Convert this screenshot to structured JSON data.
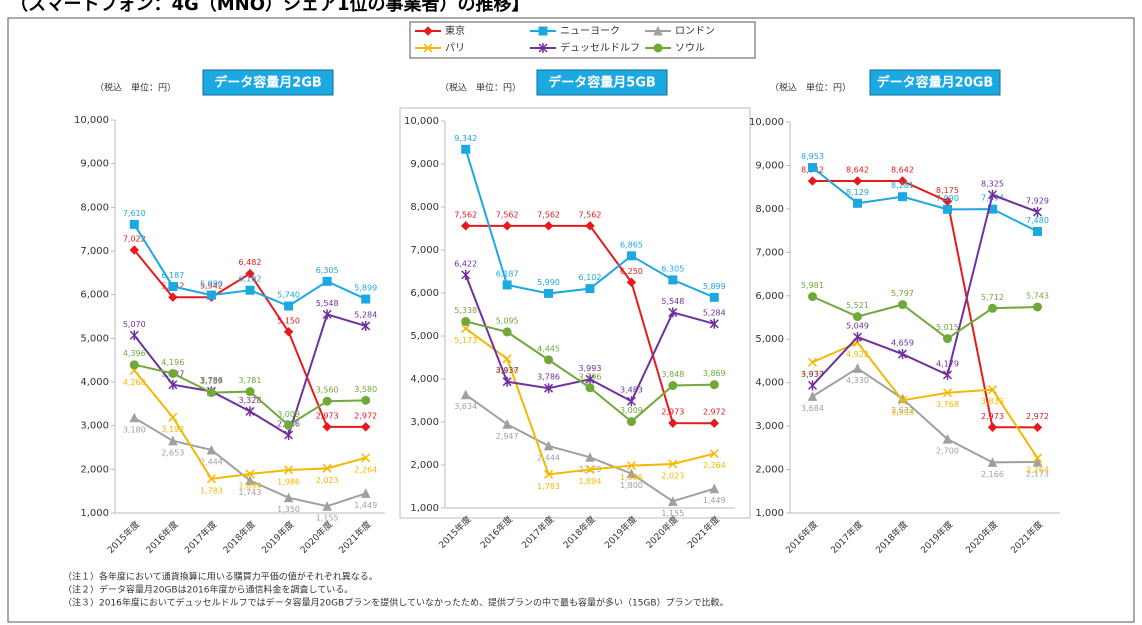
{
  "page_title": "（スマートフォン：4G（MNO）シェア1位の事業者）の推移】",
  "notes": [
    "（注１）各年度において通貨換算に用いる購買力平価の値がそれぞれ異なる。",
    "（注２）データ容量月20GBは2016年度から通信料金を調査している。",
    "（注３）2016年度においてデュッセルドルフではデータ容量月20GBプランを提供していなかったため、提供プランの中で最も容量が多い（15GB）プランで比較。"
  ],
  "chart_data": [
    {
      "type": "line",
      "title": "データ容量月2GB",
      "unit_label": "（税込　単位：円）",
      "categories": [
        "2015年度",
        "2016年度",
        "2017年度",
        "2018年度",
        "2019年度",
        "2020年度",
        "2021年度"
      ],
      "ylim": [
        1000,
        10000
      ],
      "grid": false,
      "yticks": [
        {
          "value": 1000,
          "label": "1,000"
        },
        {
          "value": 2000,
          "label": "2,000"
        },
        {
          "value": 3000,
          "label": "3,000"
        },
        {
          "value": 4000,
          "label": "4,000"
        },
        {
          "value": 5000,
          "label": "5,000"
        },
        {
          "value": 6000,
          "label": "6,000"
        },
        {
          "value": 7000,
          "label": "7,000"
        },
        {
          "value": 8000,
          "label": "8,000"
        },
        {
          "value": 9000,
          "label": "9,000"
        },
        {
          "value": 10000,
          "label": "10,000"
        }
      ],
      "series": [
        {
          "name": "東京",
          "color": "#e8191c",
          "marker": "diamond",
          "values": [
            7022,
            5942,
            5942,
            6482,
            5150,
            2973,
            2972
          ],
          "value_labels": [
            "7,022",
            "5,942",
            "5,942",
            "6,482",
            "5,150",
            "2,973",
            "2,972"
          ]
        },
        {
          "name": "ニューヨーク",
          "color": "#1ca8e0",
          "marker": "square",
          "values": [
            7610,
            6187,
            5990,
            6102,
            5740,
            6305,
            5899
          ],
          "value_labels": [
            "7,610",
            "6,187",
            "5,990",
            "6,102",
            "5,740",
            "6,305",
            "5,899"
          ]
        },
        {
          "name": "ロンドン",
          "color": "#a0a0a0",
          "marker": "triangle",
          "values": [
            3180,
            2653,
            2444,
            1743,
            1350,
            1155,
            1449
          ],
          "value_labels": [
            "3,180",
            "2,653",
            "2,444",
            "1,743",
            "1,350",
            "1,155",
            "1,449"
          ]
        },
        {
          "name": "パリ",
          "color": "#f5b800",
          "marker": "x",
          "values": [
            4268,
            3192,
            1783,
            1894,
            1986,
            2023,
            2264
          ],
          "value_labels": [
            "4,268",
            "3,192",
            "1,783",
            "1,894",
            "1,986",
            "2,023",
            "2,264"
          ]
        },
        {
          "name": "デュッセルドルフ",
          "color": "#7030a0",
          "marker": "star",
          "values": [
            5070,
            3937,
            3786,
            3328,
            2786,
            5548,
            5284
          ],
          "value_labels": [
            "5,070",
            "3,937",
            "3,786",
            "3,328",
            "2,786",
            "5,548",
            "5,284"
          ]
        },
        {
          "name": "ソウル",
          "color": "#70a83a",
          "marker": "circle",
          "values": [
            4396,
            4196,
            3757,
            3781,
            3009,
            3560,
            3580
          ],
          "value_labels": [
            "4,396",
            "4,196",
            "3,757",
            "3,781",
            "3,009",
            "3,560",
            "3,580"
          ]
        }
      ]
    },
    {
      "type": "line",
      "title": "データ容量月5GB",
      "unit_label": "（税込　単位：円）",
      "categories": [
        "2015年度",
        "2016年度",
        "2017年度",
        "2018年度",
        "2019年度",
        "2020年度",
        "2021年度"
      ],
      "ylim": [
        1000,
        10000
      ],
      "grid": false,
      "yticks": [
        {
          "value": 1000,
          "label": "1,000"
        },
        {
          "value": 2000,
          "label": "2,000"
        },
        {
          "value": 3000,
          "label": "3,000"
        },
        {
          "value": 4000,
          "label": "4,000"
        },
        {
          "value": 5000,
          "label": "5,000"
        },
        {
          "value": 6000,
          "label": "6,000"
        },
        {
          "value": 7000,
          "label": "7,000"
        },
        {
          "value": 8000,
          "label": "8,000"
        },
        {
          "value": 9000,
          "label": "9,000"
        },
        {
          "value": 10000,
          "label": "10,000"
        }
      ],
      "series": [
        {
          "name": "東京",
          "color": "#e8191c",
          "marker": "diamond",
          "values": [
            7562,
            7562,
            7562,
            7562,
            6250,
            2973,
            2972
          ],
          "value_labels": [
            "7,562",
            "7,562",
            "7,562",
            "7,562",
            "6,250",
            "2,973",
            "2,972"
          ]
        },
        {
          "name": "ニューヨーク",
          "color": "#1ca8e0",
          "marker": "square",
          "values": [
            9342,
            6187,
            5990,
            6102,
            6865,
            6305,
            5899
          ],
          "value_labels": [
            "9,342",
            "6,187",
            "5,990",
            "6,102",
            "6,865",
            "6,305",
            "5,899"
          ]
        },
        {
          "name": "ロンドン",
          "color": "#a0a0a0",
          "marker": "triangle",
          "values": [
            3634,
            2947,
            2444,
            2179,
            1800,
            1155,
            1449
          ],
          "value_labels": [
            "3,634",
            "2,947",
            "2,444",
            "2,179",
            "1,800",
            "1,155",
            "1,449"
          ]
        },
        {
          "name": "パリ",
          "color": "#f5b800",
          "marker": "x",
          "values": [
            5173,
            4470,
            1783,
            1894,
            1986,
            2023,
            2264
          ],
          "value_labels": [
            "5,173",
            "4,470",
            "1,783",
            "1,894",
            "1,986",
            "2,023",
            "2,264"
          ]
        },
        {
          "name": "デュッセルドルフ",
          "color": "#7030a0",
          "marker": "star",
          "values": [
            6422,
            3937,
            3786,
            3993,
            3483,
            5548,
            5284
          ],
          "value_labels": [
            "6,422",
            "3,937",
            "3,786",
            "3,993",
            "3,483",
            "5,548",
            "5,284"
          ]
        },
        {
          "name": "ソウル",
          "color": "#70a83a",
          "marker": "circle",
          "values": [
            5338,
            5095,
            4445,
            3796,
            3009,
            3848,
            3869
          ],
          "value_labels": [
            "5,338",
            "5,095",
            "4,445",
            "3,796",
            "3,009",
            "3,848",
            "3,869"
          ]
        }
      ]
    },
    {
      "type": "line",
      "title": "データ容量月20GB",
      "unit_label": "（税込　単位：円）",
      "categories": [
        "2016年度",
        "2017年度",
        "2018年度",
        "2019年度",
        "2020年度",
        "2021年度"
      ],
      "ylim": [
        1000,
        10000
      ],
      "grid": false,
      "yticks": [
        {
          "value": 1000,
          "label": "1,000"
        },
        {
          "value": 2000,
          "label": "2,000"
        },
        {
          "value": 3000,
          "label": "3,000"
        },
        {
          "value": 4000,
          "label": "4,000"
        },
        {
          "value": 5000,
          "label": "5,000"
        },
        {
          "value": 6000,
          "label": "6,000"
        },
        {
          "value": 7000,
          "label": "7,000"
        },
        {
          "value": 8000,
          "label": "8,000"
        },
        {
          "value": 9000,
          "label": "9,000"
        },
        {
          "value": 10000,
          "label": "10,000"
        }
      ],
      "series": [
        {
          "name": "東京",
          "color": "#e8191c",
          "marker": "diamond",
          "values": [
            8642,
            8642,
            8642,
            8175,
            2973,
            2972
          ],
          "value_labels": [
            "8,642",
            "8,642",
            "8,642",
            "8,175",
            "2,973",
            "2,972"
          ]
        },
        {
          "name": "ニューヨーク",
          "color": "#1ca8e0",
          "marker": "square",
          "values": [
            8953,
            8129,
            8281,
            7990,
            7994,
            7480
          ],
          "value_labels": [
            "8,953",
            "8,129",
            "8,281",
            "7,990",
            "7,994",
            "7,480"
          ]
        },
        {
          "name": "ロンドン",
          "color": "#a0a0a0",
          "marker": "triangle",
          "values": [
            3684,
            4330,
            3632,
            2700,
            2166,
            2173
          ],
          "value_labels": [
            "3,684",
            "4,330",
            "3,632",
            "2,700",
            "2,166",
            "2,173"
          ]
        },
        {
          "name": "パリ",
          "color": "#f5b800",
          "marker": "x",
          "values": [
            4470,
            4922,
            3593,
            3768,
            3839,
            2264
          ],
          "value_labels": [
            "4,470",
            "4,922",
            "3,593",
            "3,768",
            "3,839",
            "2,264"
          ]
        },
        {
          "name": "デュッセルドルフ",
          "color": "#7030a0",
          "marker": "star",
          "values": [
            3937,
            5049,
            4659,
            4179,
            8325,
            7929
          ],
          "value_labels": [
            "3,937",
            "5,049",
            "4,659",
            "4,179",
            "8,325",
            "7,929"
          ]
        },
        {
          "name": "ソウル",
          "color": "#70a83a",
          "marker": "circle",
          "values": [
            5981,
            5521,
            5797,
            5015,
            5712,
            5743
          ],
          "value_labels": [
            "5,981",
            "5,521",
            "5,797",
            "5,015",
            "5,712",
            "5,743"
          ]
        }
      ]
    }
  ]
}
